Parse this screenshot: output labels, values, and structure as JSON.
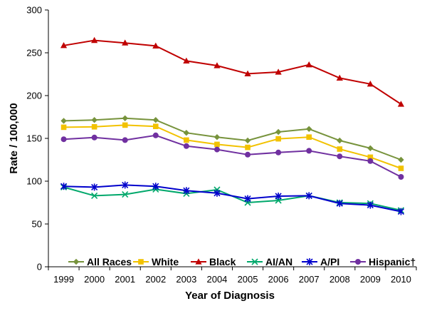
{
  "chart_data": {
    "type": "line",
    "title": "",
    "xlabel": "Year of Diagnosis",
    "ylabel": "Rate / 100,000",
    "categories": [
      "1999",
      "2000",
      "2001",
      "2002",
      "2003",
      "2004",
      "2005",
      "2006",
      "2007",
      "2008",
      "2009",
      "2010"
    ],
    "ylim": [
      0,
      300
    ],
    "yticks": [
      0,
      50,
      100,
      150,
      200,
      250,
      300
    ],
    "grid": false,
    "legend_position": "bottom-inside",
    "series": [
      {
        "name": "All Races",
        "color": "#77933C",
        "marker": "diamond",
        "values": [
          170.5,
          171.5,
          173.5,
          171.5,
          156.5,
          151.5,
          147.5,
          157.5,
          161,
          147.5,
          138.5,
          125
        ]
      },
      {
        "name": "White",
        "color": "#F2C200",
        "marker": "square",
        "values": [
          163,
          163.5,
          165.5,
          164,
          148,
          143,
          139.5,
          149.5,
          151.5,
          137.5,
          128,
          115
        ]
      },
      {
        "name": "Black",
        "color": "#C00000",
        "marker": "triangle",
        "values": [
          258.5,
          264.5,
          261.5,
          258,
          240.5,
          235,
          225.5,
          227.5,
          236,
          220.5,
          213.5,
          190
        ]
      },
      {
        "name": "AI/AN",
        "color": "#00A86B",
        "marker": "x",
        "values": [
          93,
          83,
          84.5,
          90.5,
          85.5,
          90,
          75,
          77.5,
          83,
          75,
          74,
          66
        ]
      },
      {
        "name": "A/PI",
        "color": "#0000CC",
        "marker": "star",
        "values": [
          94,
          93,
          95.5,
          94,
          89,
          86,
          79.5,
          82.5,
          83,
          74,
          72,
          64.5
        ]
      },
      {
        "name": "Hispanic†",
        "color": "#7030A0",
        "marker": "circle",
        "values": [
          149,
          151,
          148,
          153.5,
          141,
          137,
          131,
          133.5,
          135.5,
          129,
          123.5,
          105
        ]
      }
    ]
  }
}
